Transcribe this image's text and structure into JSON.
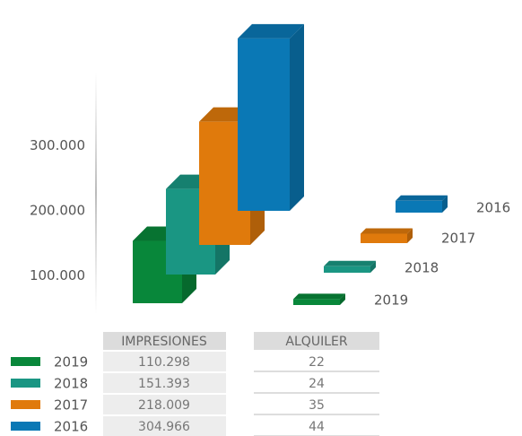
{
  "chart_data": {
    "type": "bar3d",
    "categories": [
      "2019",
      "2018",
      "2017",
      "2016"
    ],
    "colors": [
      "#08873a",
      "#1a9683",
      "#e07a0c",
      "#0a78b5"
    ],
    "series": [
      {
        "name": "IMPRESIONES",
        "values": [
          110298,
          151393,
          218009,
          304966
        ],
        "value_labels": [
          "110.298",
          "151.393",
          "218.009",
          "304.966"
        ]
      },
      {
        "name": "ALQUILER",
        "values": [
          22,
          24,
          35,
          44
        ]
      }
    ],
    "yticks": [
      {
        "value": 100000,
        "label": "100.000"
      },
      {
        "value": 200000,
        "label": "200.000"
      },
      {
        "value": 300000,
        "label": "300.000"
      }
    ]
  }
}
